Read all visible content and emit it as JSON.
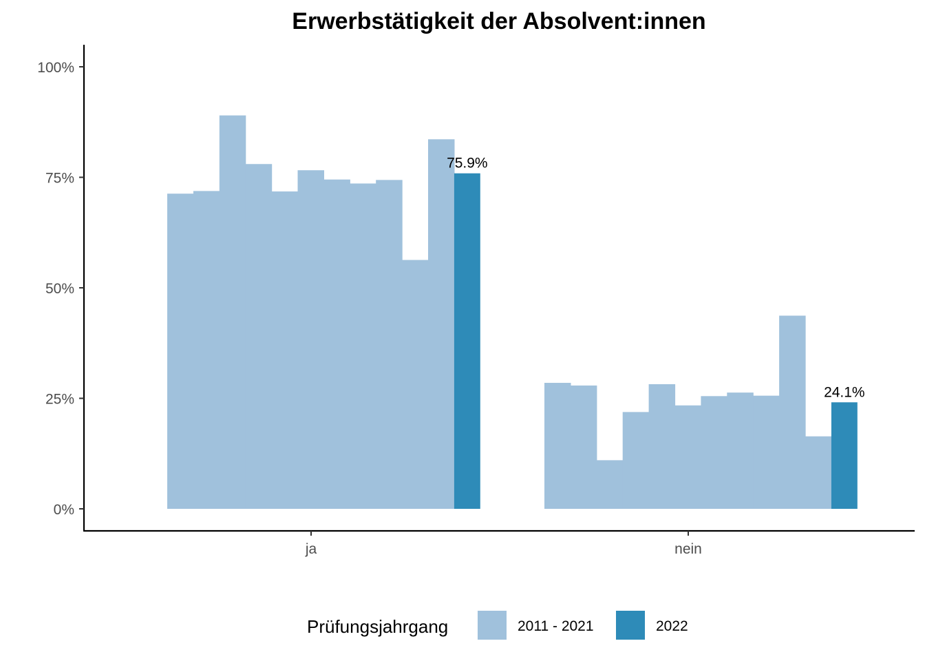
{
  "chart_data": {
    "type": "bar",
    "title": "Erwerbstätigkeit der Absolvent:innen",
    "xlabel": "",
    "ylabel": "",
    "categories": [
      "ja",
      "nein"
    ],
    "ylim": [
      0,
      1
    ],
    "y_ticks": [
      {
        "value": 0,
        "label": "0%"
      },
      {
        "value": 0.25,
        "label": "25%"
      },
      {
        "value": 0.5,
        "label": "50%"
      },
      {
        "value": 0.75,
        "label": "75%"
      },
      {
        "value": 1,
        "label": "100%"
      }
    ],
    "grid": false,
    "legend": {
      "title": "Prüfungsjahrgang",
      "position": "bottom",
      "entries": [
        {
          "name": "2011 - 2021",
          "color": "#a0c1dc"
        },
        {
          "name": "2022",
          "color": "#2e8bb8"
        }
      ]
    },
    "series": [
      {
        "name": "2011 - 2021",
        "color": "#a0c1dc",
        "values": [
          [
            0.713,
            0.719,
            0.89,
            0.78,
            0.718,
            0.766,
            0.745,
            0.736,
            0.744,
            0.563,
            0.836
          ],
          [
            0.285,
            0.279,
            0.11,
            0.219,
            0.282,
            0.234,
            0.255,
            0.263,
            0.256,
            0.437,
            0.164
          ]
        ]
      },
      {
        "name": "2022",
        "color": "#2e8bb8",
        "values": [
          0.759,
          0.241
        ],
        "labels": [
          "75.9%",
          "24.1%"
        ]
      }
    ]
  }
}
